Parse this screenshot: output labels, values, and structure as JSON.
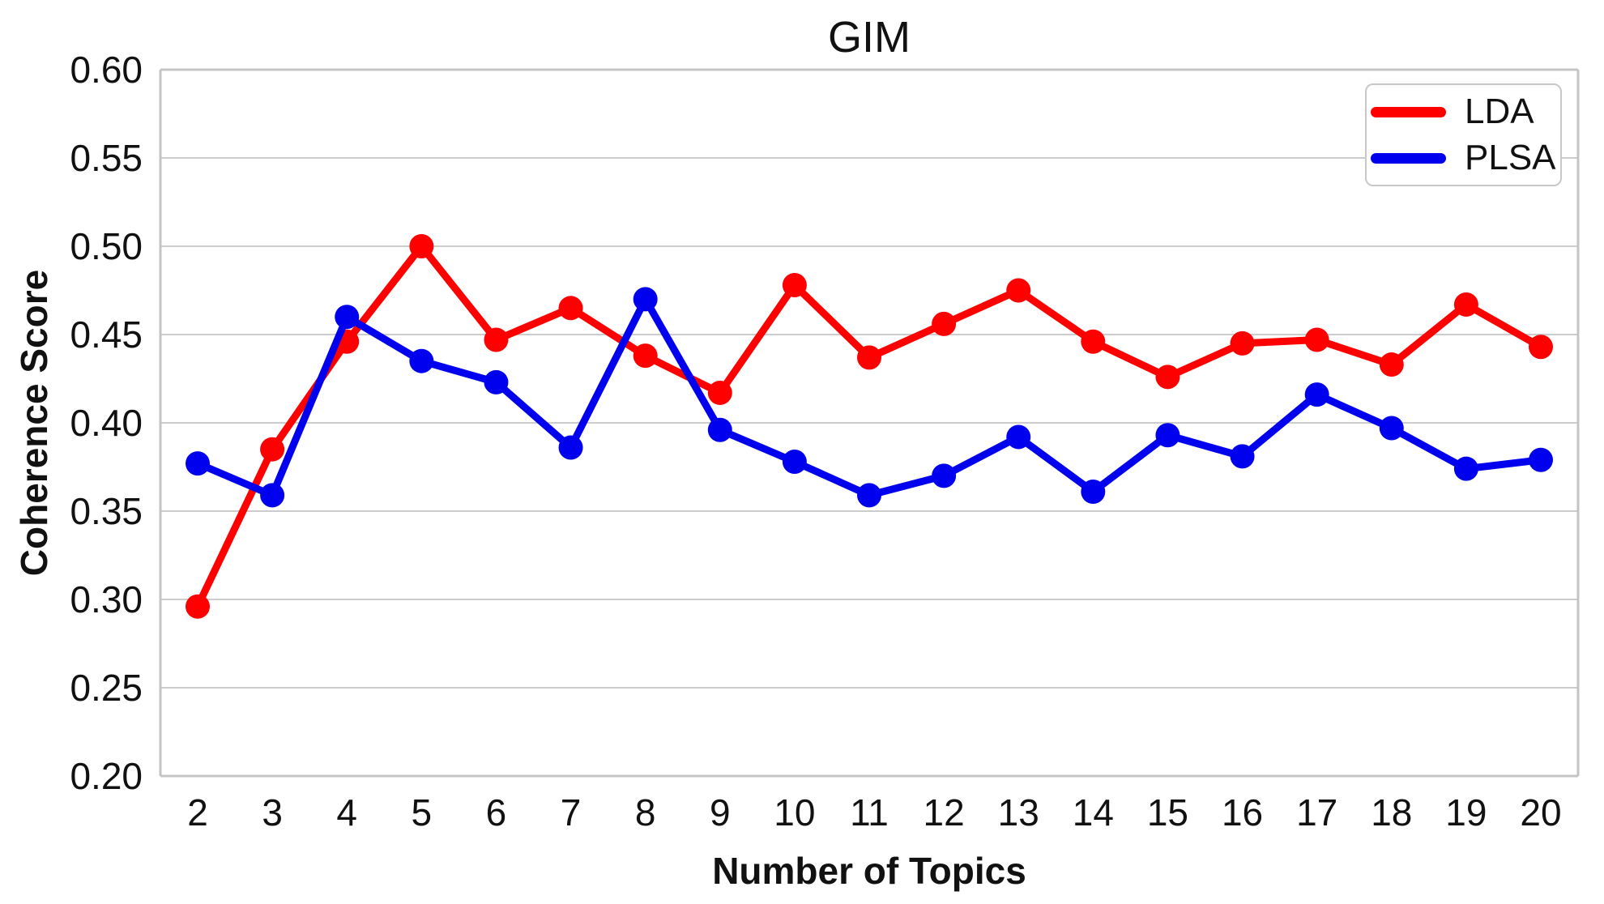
{
  "chart_data": {
    "type": "line",
    "title": "GIM",
    "xlabel": "Number of Topics",
    "ylabel": "Coherence Score",
    "x": [
      2,
      3,
      4,
      5,
      6,
      7,
      8,
      9,
      10,
      11,
      12,
      13,
      14,
      15,
      16,
      17,
      18,
      19,
      20
    ],
    "series": [
      {
        "name": "LDA",
        "color": "#ff0000",
        "values": [
          0.296,
          0.385,
          0.446,
          0.5,
          0.447,
          0.465,
          0.438,
          0.417,
          0.478,
          0.437,
          0.456,
          0.475,
          0.446,
          0.426,
          0.445,
          0.447,
          0.433,
          0.467,
          0.443
        ]
      },
      {
        "name": "PLSA",
        "color": "#0000ee",
        "values": [
          0.377,
          0.359,
          0.46,
          0.435,
          0.423,
          0.386,
          0.47,
          0.396,
          0.378,
          0.359,
          0.37,
          0.392,
          0.361,
          0.393,
          0.381,
          0.416,
          0.397,
          0.374,
          0.379
        ]
      }
    ],
    "ylim": [
      0.2,
      0.6
    ],
    "yticks": [
      0.2,
      0.25,
      0.3,
      0.35,
      0.4,
      0.45,
      0.5,
      0.55,
      0.6
    ],
    "ytick_labels": [
      "0.20",
      "0.25",
      "0.30",
      "0.35",
      "0.40",
      "0.45",
      "0.50",
      "0.55",
      "0.60"
    ],
    "grid": true,
    "legend_position": "upper right"
  },
  "style": {
    "background": "#ffffff",
    "grid_color": "#cccccc",
    "spine_color": "#c4c4c4",
    "text_color": "#111111"
  }
}
